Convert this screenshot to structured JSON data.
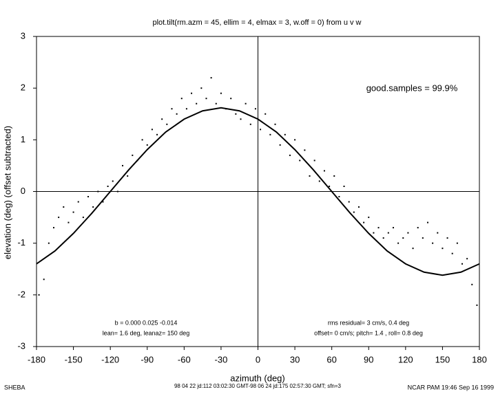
{
  "chart_data": {
    "type": "scatter",
    "title": "plot.tilt(rm.azm = 45, ellim = 4, elmax = 3, w.off = 0) from u v w",
    "x_label": "azimuth (deg)",
    "y_label": "elevation (deg)  (offset subtracted)",
    "xlim": [
      -180,
      180
    ],
    "ylim": [
      -3,
      3
    ],
    "xticks": [
      -180,
      -150,
      -120,
      -90,
      -60,
      -30,
      0,
      30,
      60,
      90,
      120,
      150,
      180
    ],
    "yticks": [
      -3,
      -2,
      -1,
      0,
      1,
      2,
      3
    ],
    "annotations": [
      "good.samples = 99.9%",
      "b =  0.000  0.025 -0.014",
      "lean= 1.6 deg, leanaz= 150 deg",
      "rms residual= 3 cm/s, 0.4 deg",
      "offset= 0 cm/s; pitch= 1.4 , roll= 0.8 deg"
    ],
    "footer": [
      "SHEBA",
      "98 04 22 jd:112 03:02:30 GMT-98 06 24 jd:175 02:57:30 GMT; sfn=3",
      "NCAR PAM 19:46 Sep 16 1999"
    ],
    "series": [
      {
        "style": "points",
        "color": "#000000",
        "x": [
          -178,
          -174,
          -170,
          -166,
          -162,
          -158,
          -154,
          -150,
          -146,
          -142,
          -138,
          -134,
          -130,
          -126,
          -122,
          -118,
          -114,
          -110,
          -106,
          -102,
          -98,
          -94,
          -90,
          -86,
          -82,
          -78,
          -74,
          -70,
          -66,
          -62,
          -58,
          -54,
          -50,
          -46,
          -42,
          -38,
          -34,
          -30,
          -26,
          -22,
          -18,
          -14,
          -10,
          -6,
          -2,
          2,
          6,
          10,
          14,
          18,
          22,
          26,
          30,
          34,
          38,
          42,
          46,
          50,
          54,
          58,
          62,
          66,
          70,
          74,
          78,
          82,
          86,
          90,
          94,
          98,
          102,
          106,
          110,
          114,
          118,
          122,
          126,
          130,
          134,
          138,
          142,
          146,
          150,
          154,
          158,
          162,
          166,
          170,
          174,
          178
        ],
        "values": [
          -2.0,
          -1.7,
          -1.0,
          -0.7,
          -0.5,
          -0.3,
          -0.6,
          -0.4,
          -0.2,
          -0.5,
          -0.1,
          -0.3,
          0.0,
          -0.2,
          0.1,
          0.2,
          0.0,
          0.5,
          0.3,
          0.7,
          0.6,
          1.0,
          0.9,
          1.2,
          1.1,
          1.4,
          1.3,
          1.6,
          1.5,
          1.8,
          1.6,
          1.9,
          1.7,
          2.0,
          1.8,
          2.2,
          1.7,
          1.9,
          1.6,
          1.8,
          1.5,
          1.4,
          1.7,
          1.3,
          1.6,
          1.2,
          1.5,
          1.1,
          1.3,
          0.9,
          1.1,
          0.7,
          1.0,
          0.6,
          0.8,
          0.3,
          0.6,
          0.2,
          0.4,
          0.1,
          0.3,
          -0.1,
          0.1,
          -0.2,
          -0.4,
          -0.3,
          -0.6,
          -0.5,
          -0.8,
          -0.7,
          -0.9,
          -0.8,
          -0.7,
          -1.0,
          -0.9,
          -0.8,
          -1.1,
          -0.7,
          -0.9,
          -0.6,
          -1.0,
          -0.8,
          -1.1,
          -0.9,
          -1.2,
          -1.0,
          -1.4,
          -1.3,
          -1.8,
          -2.2
        ]
      },
      {
        "style": "line",
        "color": "#000000",
        "x": [
          -180,
          -165,
          -150,
          -135,
          -120,
          -105,
          -90,
          -75,
          -60,
          -45,
          -30,
          -15,
          0,
          15,
          30,
          45,
          60,
          75,
          90,
          105,
          120,
          135,
          150,
          165,
          180
        ],
        "values": [
          -1.4,
          -1.15,
          -0.81,
          -0.42,
          0,
          0.42,
          0.81,
          1.15,
          1.4,
          1.56,
          1.62,
          1.56,
          1.4,
          1.15,
          0.81,
          0.42,
          0,
          -0.42,
          -0.81,
          -1.15,
          -1.4,
          -1.56,
          -1.62,
          -1.56,
          -1.4
        ]
      }
    ]
  }
}
